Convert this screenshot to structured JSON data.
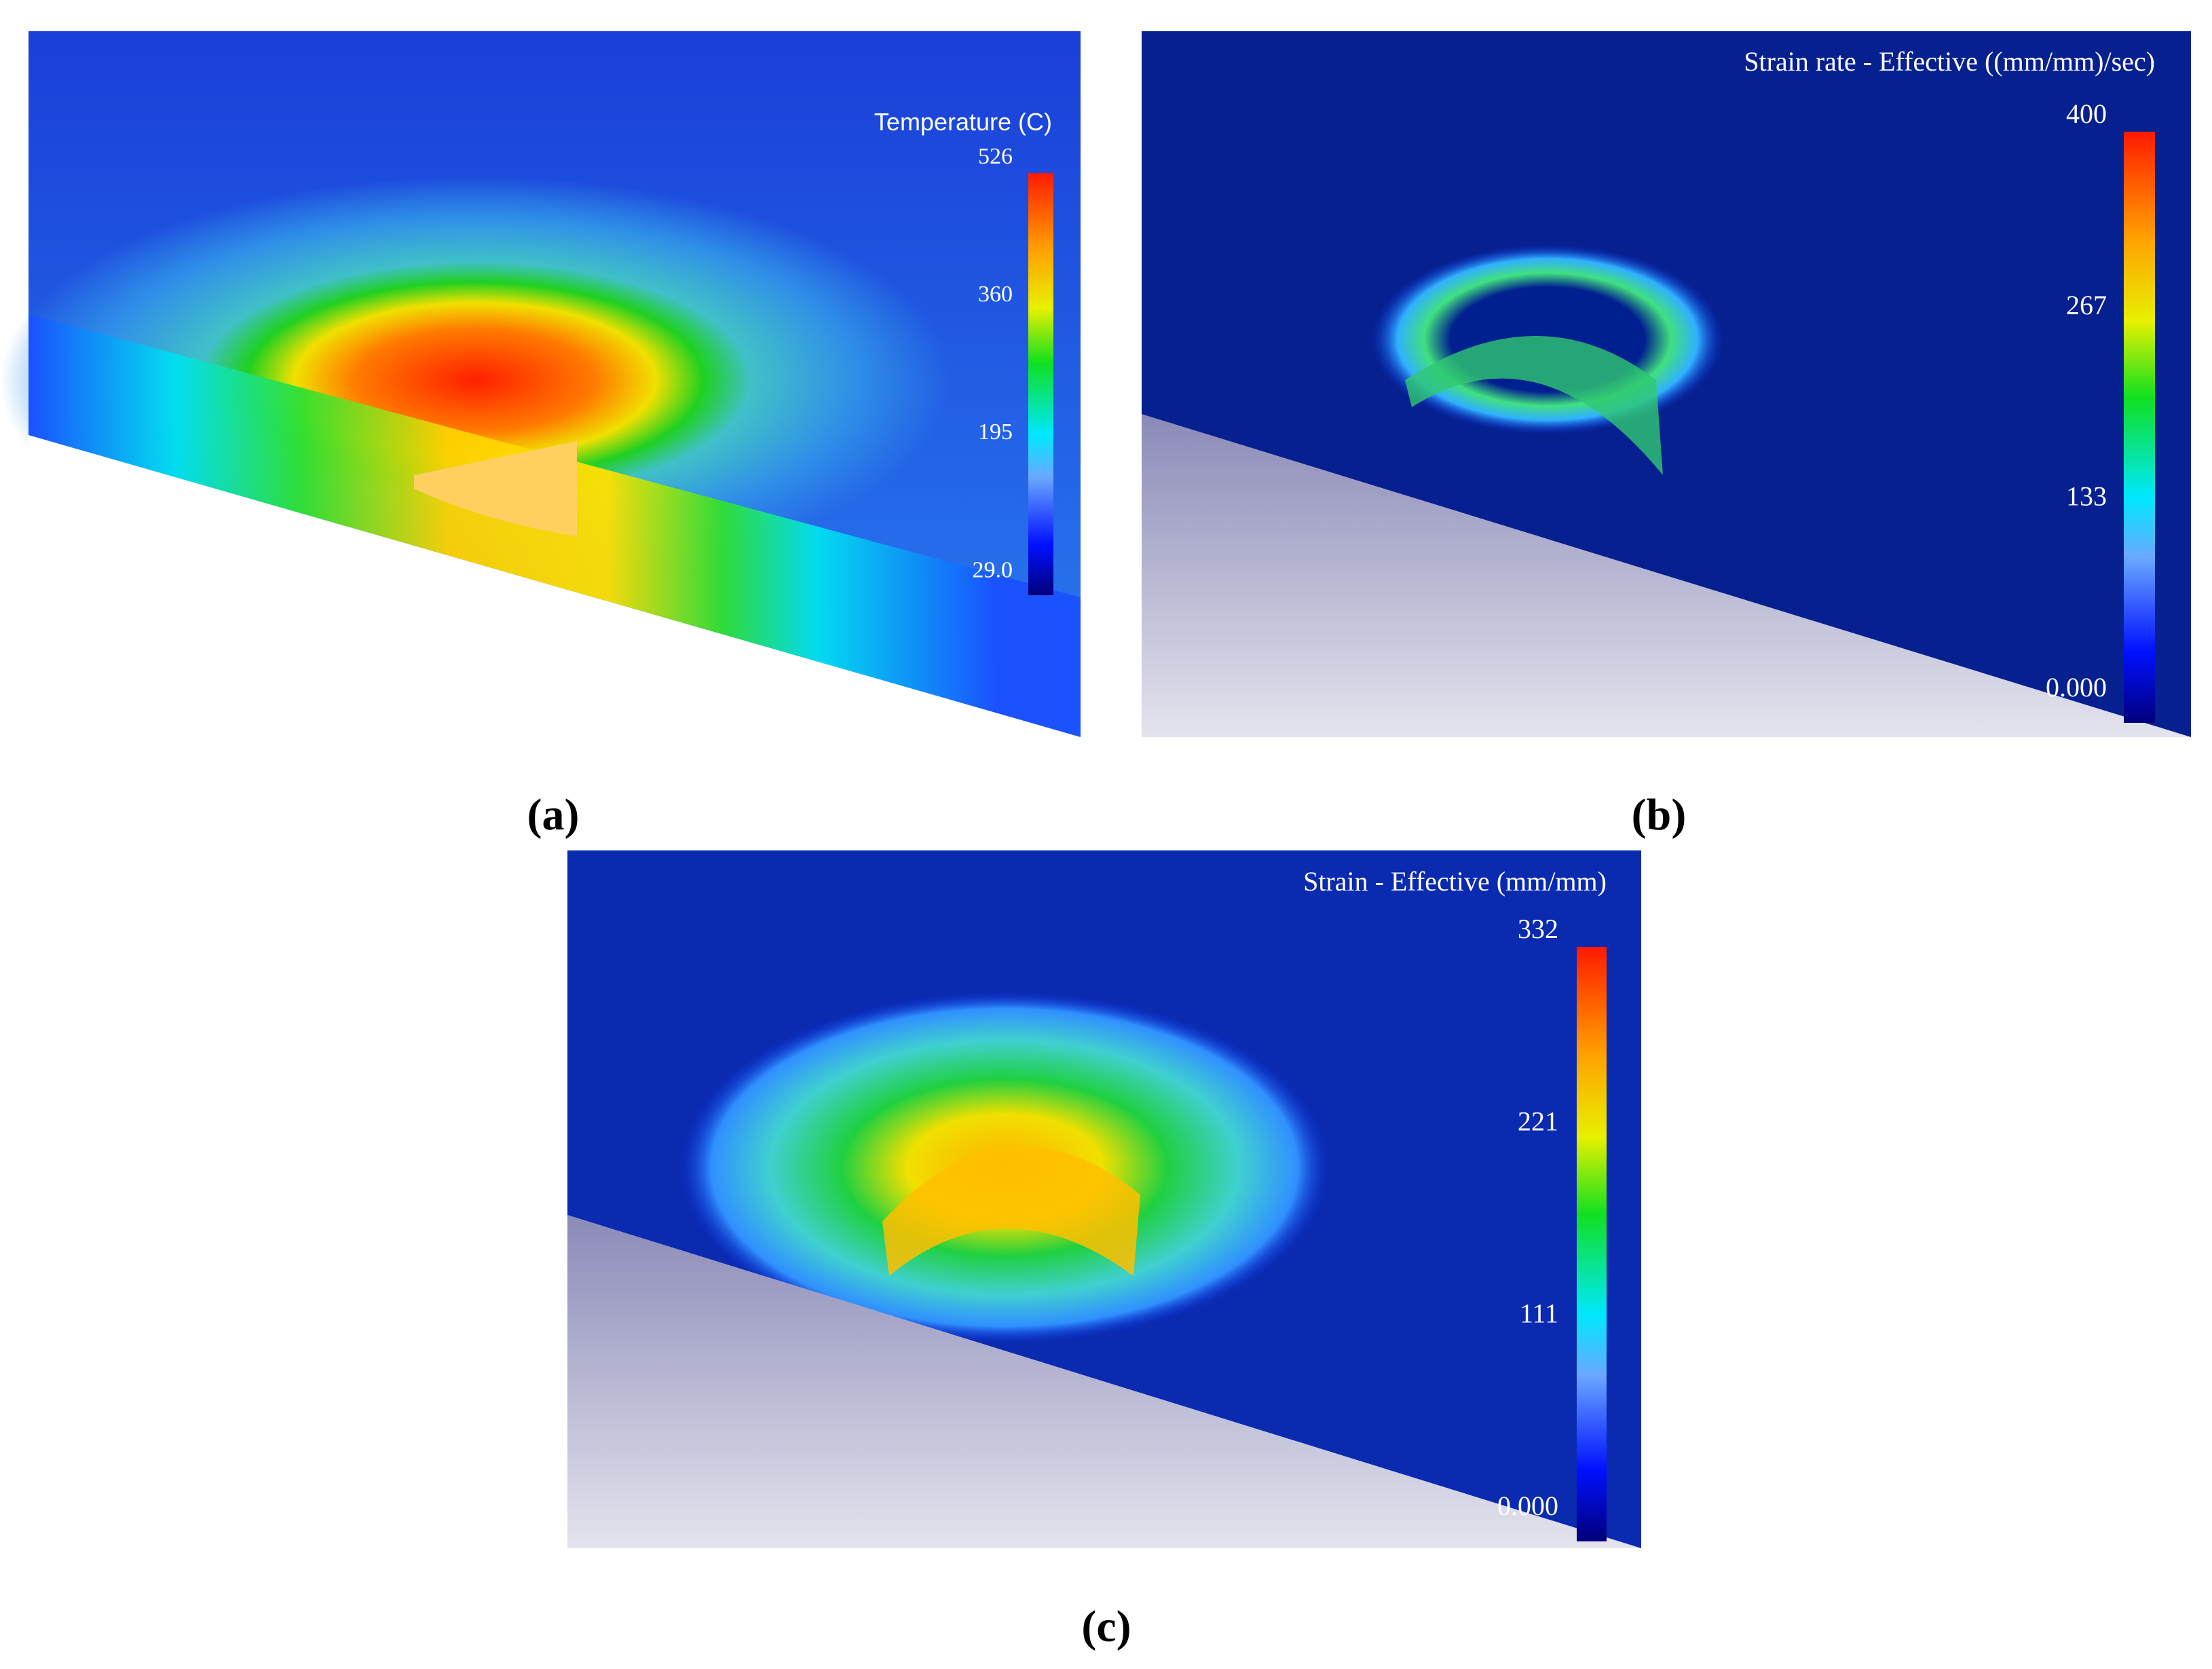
{
  "panels": [
    {
      "label": "(a)",
      "legend": {
        "title": "Temperature (C)",
        "ticks": [
          "526",
          "360",
          "195",
          "29.0"
        ]
      }
    },
    {
      "label": "(b)",
      "legend": {
        "title": "Strain rate - Effective ((mm/mm)/sec)",
        "ticks": [
          "400",
          "267",
          "133",
          "0.000"
        ]
      }
    },
    {
      "label": "(c)",
      "legend": {
        "title": "Strain - Effective (mm/mm)",
        "ticks": [
          "332",
          "221",
          "111",
          "0.000"
        ]
      }
    }
  ]
}
